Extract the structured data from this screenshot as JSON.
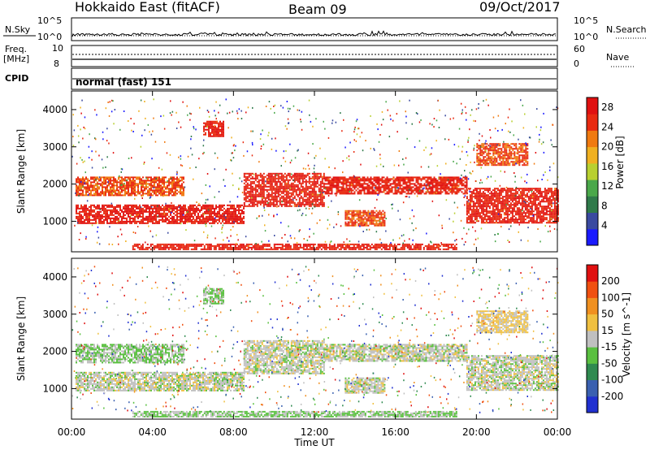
{
  "header": {
    "station": "Hokkaido East (fitACF)",
    "beam": "Beam 09",
    "date": "09/Oct/2017"
  },
  "panels": {
    "nsky_label": "N.Sky",
    "nsky_ticks": [
      "10^5",
      "10^0"
    ],
    "nsearch_label": "N.Search",
    "freq_label": "Freq.",
    "freq_unit": "[MHz]",
    "freq_ticks": [
      "10",
      "8"
    ],
    "nave_label": "Nave",
    "nave_ticks": [
      "60",
      "0"
    ],
    "cpid_label": "CPID",
    "cpid_text": "normal (fast) 151"
  },
  "chart_data": [
    {
      "type": "heatmap",
      "title": "",
      "xlabel": "Time UT",
      "ylabel": "Slant Range [km]",
      "x_ticks": [
        "00:00",
        "04:00",
        "08:00",
        "12:00",
        "16:00",
        "20:00",
        "00:00"
      ],
      "xlim_hours": [
        0,
        24
      ],
      "ylim": [
        180,
        4500
      ],
      "y_ticks": [
        1000,
        2000,
        3000,
        4000
      ],
      "colorbar": {
        "label": "Power [dB]",
        "range": [
          0,
          30
        ],
        "ticks": [
          4,
          8,
          12,
          16,
          20,
          24,
          28
        ],
        "colors": [
          "#1a1aff",
          "#3a4aa0",
          "#2f7a4a",
          "#4aa84a",
          "#b8d030",
          "#f0b020",
          "#f07a10",
          "#e82a10",
          "#e01010"
        ]
      },
      "echo_regions": [
        {
          "t0": 0.2,
          "t1": 8.5,
          "r0": 950,
          "r1": 1450,
          "value": 27
        },
        {
          "t0": 8.5,
          "t1": 12.5,
          "r0": 1400,
          "r1": 2300,
          "value": 26
        },
        {
          "t0": 12.5,
          "t1": 19.5,
          "r0": 1750,
          "r1": 2200,
          "value": 26
        },
        {
          "t0": 19.5,
          "t1": 24.0,
          "r0": 950,
          "r1": 1900,
          "value": 26
        },
        {
          "t0": 0.2,
          "t1": 5.5,
          "r0": 1700,
          "r1": 2200,
          "value": 24
        },
        {
          "t0": 6.5,
          "t1": 7.5,
          "r0": 3300,
          "r1": 3700,
          "value": 26
        },
        {
          "t0": 13.5,
          "t1": 15.5,
          "r0": 900,
          "r1": 1300,
          "value": 24
        },
        {
          "t0": 20.0,
          "t1": 22.5,
          "r0": 2500,
          "r1": 3100,
          "value": 24
        },
        {
          "t0": 3.0,
          "t1": 19.0,
          "r0": 250,
          "r1": 400,
          "value": 26
        }
      ]
    },
    {
      "type": "heatmap",
      "title": "",
      "xlabel": "Time UT",
      "ylabel": "Slant Range [km]",
      "x_ticks": [
        "00:00",
        "04:00",
        "08:00",
        "12:00",
        "16:00",
        "20:00",
        "00:00"
      ],
      "xlim_hours": [
        0,
        24
      ],
      "ylim": [
        180,
        4500
      ],
      "y_ticks": [
        1000,
        2000,
        3000,
        4000
      ],
      "colorbar": {
        "label": "Velocity [m s^-1]",
        "range": [
          -250,
          250
        ],
        "ticks": [
          200,
          100,
          50,
          15,
          -15,
          -50,
          -100,
          -200
        ],
        "colors": [
          "#2030d0",
          "#3a60b0",
          "#2f8a50",
          "#5ac040",
          "#c0c0c0",
          "#f0c040",
          "#f09020",
          "#f05010",
          "#e01010"
        ]
      },
      "echo_regions": [
        {
          "t0": 0.2,
          "t1": 8.5,
          "r0": 950,
          "r1": 1450,
          "value": 0
        },
        {
          "t0": 8.5,
          "t1": 12.5,
          "r0": 1400,
          "r1": 2300,
          "value": 0
        },
        {
          "t0": 12.5,
          "t1": 19.5,
          "r0": 1750,
          "r1": 2200,
          "value": 0
        },
        {
          "t0": 19.5,
          "t1": 24.0,
          "r0": 950,
          "r1": 1900,
          "value": 0
        },
        {
          "t0": 0.2,
          "t1": 5.5,
          "r0": 1700,
          "r1": 2200,
          "value": -30
        },
        {
          "t0": 6.5,
          "t1": 7.5,
          "r0": 3300,
          "r1": 3700,
          "value": -30
        },
        {
          "t0": 13.5,
          "t1": 15.5,
          "r0": 900,
          "r1": 1300,
          "value": 0
        },
        {
          "t0": 20.0,
          "t1": 22.5,
          "r0": 2500,
          "r1": 3100,
          "value": 40
        },
        {
          "t0": 3.0,
          "t1": 19.0,
          "r0": 250,
          "r1": 400,
          "value": -30
        }
      ]
    }
  ]
}
